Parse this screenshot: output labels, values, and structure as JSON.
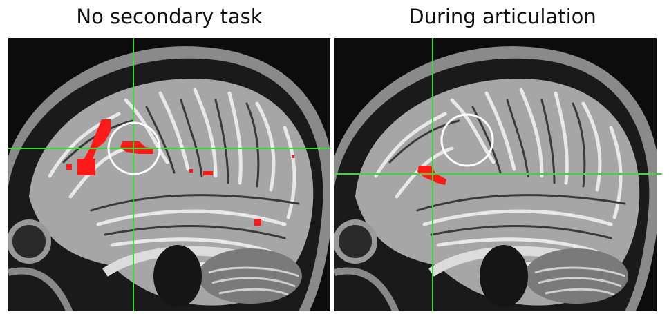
{
  "panels": [
    {
      "title": "No secondary task"
    },
    {
      "title": "During articulation"
    }
  ]
}
